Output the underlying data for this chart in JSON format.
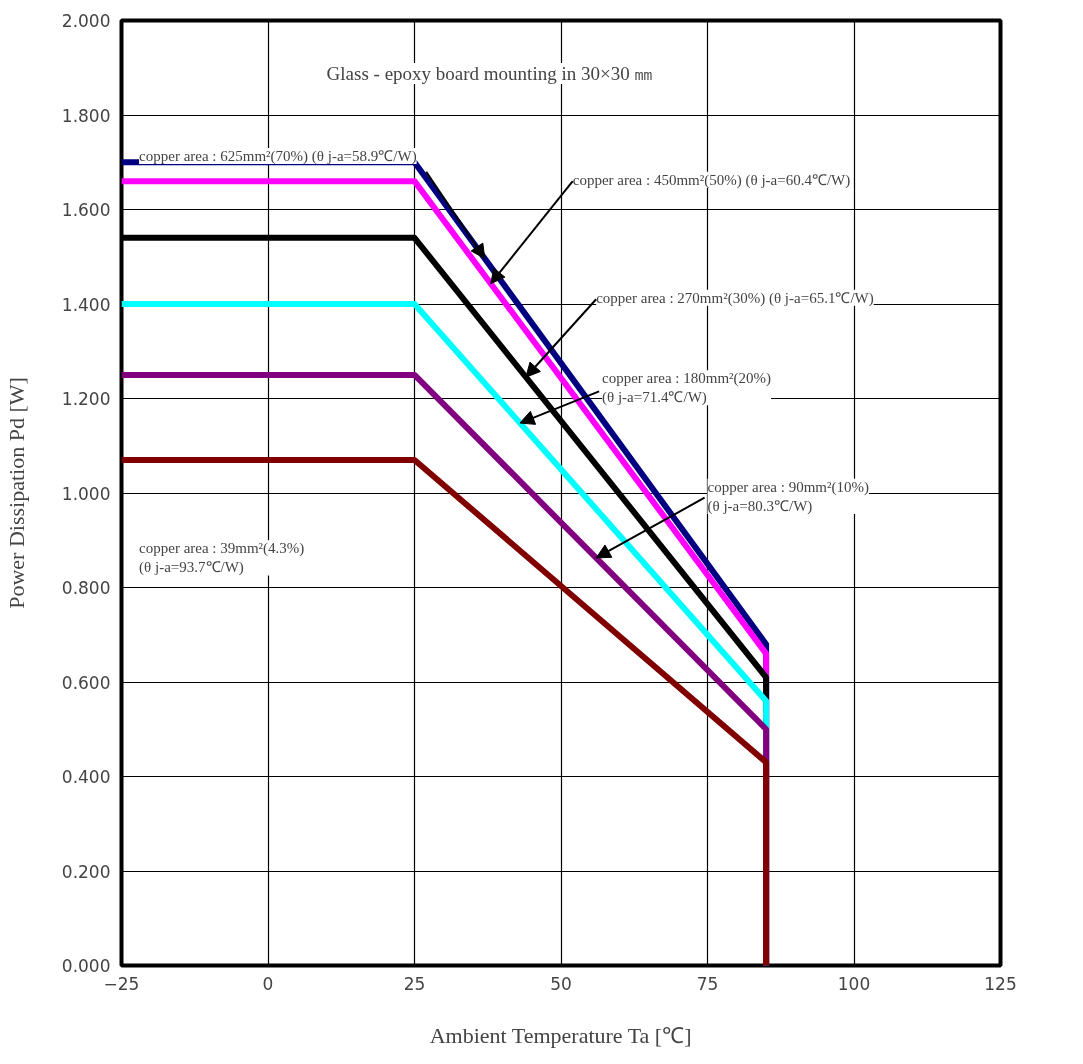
{
  "chart_data": {
    "type": "line",
    "xlabel": "Ambient Temperature Ta [℃]",
    "ylabel": "Power Dissipation Pd [W]",
    "x": [
      -25,
      25,
      85,
      85
    ],
    "series": [
      {
        "color": "#000080",
        "values": [
          1.7,
          1.7,
          0.68,
          0
        ]
      },
      {
        "color": "#ff00ff",
        "values": [
          1.66,
          1.66,
          0.66,
          0
        ]
      },
      {
        "color": "#000000",
        "values": [
          1.54,
          1.54,
          0.61,
          0
        ]
      },
      {
        "color": "#00ffff",
        "values": [
          1.4,
          1.4,
          0.56,
          0
        ]
      },
      {
        "color": "#800080",
        "values": [
          1.25,
          1.25,
          0.5,
          0
        ]
      },
      {
        "color": "#800000",
        "values": [
          1.07,
          1.07,
          0.43,
          0
        ]
      }
    ],
    "xlim": [
      -25,
      125
    ],
    "xticks": [
      -25,
      0,
      25,
      50,
      75,
      100,
      125
    ],
    "ylim": [
      0,
      2
    ],
    "yticks": [
      {
        "value": 0,
        "label": "0.000"
      },
      {
        "value": 0.2,
        "label": "0.200"
      },
      {
        "value": 0.4,
        "label": "0.400"
      },
      {
        "value": 0.6,
        "label": "0.600"
      },
      {
        "value": 0.8,
        "label": "0.800"
      },
      {
        "value": 1.0,
        "label": "1.000"
      },
      {
        "value": 1.2,
        "label": "1.200"
      },
      {
        "value": 1.4,
        "label": "1.400"
      },
      {
        "value": 1.6,
        "label": "1.600"
      },
      {
        "value": 1.8,
        "label": "1.800"
      },
      {
        "value": 2.0,
        "label": "2.000"
      }
    ],
    "grid": true,
    "marker": "none",
    "line_style": "solid",
    "annotations": [
      "Glass - epoxy board mounting in 30×30 ㎜",
      {
        "text": "copper area : 625mm²(70%) (θ j-a=58.9℃/W)",
        "x": 37,
        "y": 1.496
      },
      {
        "text": "copper area : 450mm²(50%) (θ j-a=60.4℃/W)",
        "x": 38,
        "y": 1.443
      },
      {
        "text": "copper area : 270mm²(30%) (θ j-a=65.1℃/W)",
        "x": 44,
        "y": 1.245
      },
      {
        "text": "copper area : 180mm²(20%)\n(θ j-a=71.4℃/W)",
        "x": 43,
        "y": 1.148
      },
      {
        "text": "copper area : 90mm²(10%)\n(θ j-a=80.3℃/W)",
        "x": 56,
        "y": 0.8625
      },
      "copper area : 39mm²(4.3%)\n(θ j-a=93.7℃/W)"
    ]
  }
}
